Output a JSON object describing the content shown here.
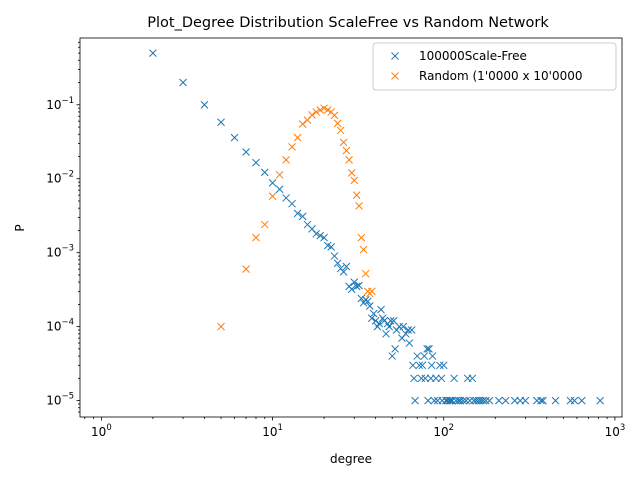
{
  "chart_data": {
    "type": "scatter",
    "title": "Plot_Degree Distribution ScaleFree vs Random Network",
    "xlabel": "degree",
    "ylabel": "P",
    "xscale": "log",
    "yscale": "log",
    "xlim": [
      0.75,
      1100
    ],
    "ylim": [
      6e-06,
      0.8
    ],
    "grid": false,
    "legend_position": "upper right",
    "x_ticks": [
      1,
      10,
      100,
      1000
    ],
    "x_tick_labels": [
      {
        "base": "10",
        "exp": "0"
      },
      {
        "base": "10",
        "exp": "1"
      },
      {
        "base": "10",
        "exp": "2"
      },
      {
        "base": "10",
        "exp": "3"
      }
    ],
    "y_ticks": [
      1e-05,
      0.0001,
      0.001,
      0.01,
      0.1
    ],
    "y_tick_labels": [
      {
        "base": "10",
        "exp": "−5"
      },
      {
        "base": "10",
        "exp": "−4"
      },
      {
        "base": "10",
        "exp": "−3"
      },
      {
        "base": "10",
        "exp": "−2"
      },
      {
        "base": "10",
        "exp": "−1"
      }
    ],
    "series": [
      {
        "name": "100000Scale-Free",
        "color": "#1f77b4",
        "marker": "x",
        "points": [
          [
            2,
            0.5
          ],
          [
            3,
            0.2
          ],
          [
            4,
            0.1
          ],
          [
            5,
            0.058
          ],
          [
            6,
            0.036
          ],
          [
            7,
            0.023
          ],
          [
            8,
            0.0165
          ],
          [
            9,
            0.0122
          ],
          [
            10,
            0.0088
          ],
          [
            11,
            0.0072
          ],
          [
            12,
            0.0055
          ],
          [
            13,
            0.0046
          ],
          [
            14,
            0.0034
          ],
          [
            15,
            0.0031
          ],
          [
            16,
            0.0024
          ],
          [
            17,
            0.0021
          ],
          [
            18,
            0.0018
          ],
          [
            19,
            0.0017
          ],
          [
            20,
            0.0016
          ],
          [
            21,
            0.00125
          ],
          [
            22,
            0.0012
          ],
          [
            23,
            0.0009
          ],
          [
            24,
            0.00072
          ],
          [
            25,
            0.00061
          ],
          [
            26,
            0.00055
          ],
          [
            27,
            0.00065
          ],
          [
            28,
            0.00035
          ],
          [
            29,
            0.00032
          ],
          [
            30,
            0.0004
          ],
          [
            31,
            0.00035
          ],
          [
            32,
            0.00036
          ],
          [
            33,
            0.00024
          ],
          [
            34,
            0.00021
          ],
          [
            35,
            0.00023
          ],
          [
            36,
            0.00022
          ],
          [
            37,
            0.00019
          ],
          [
            38,
            0.00013
          ],
          [
            39,
            0.00015
          ],
          [
            40,
            0.00012
          ],
          [
            41,
            0.0001
          ],
          [
            42,
            0.00011
          ],
          [
            43,
            0.00017
          ],
          [
            44,
            0.00013
          ],
          [
            45,
            0.00012
          ],
          [
            46,
            8e-05
          ],
          [
            47,
            0.00011
          ],
          [
            48,
            0.0001
          ],
          [
            49,
            0.00012
          ],
          [
            50,
            4e-05
          ],
          [
            51,
            0.00012
          ],
          [
            52,
            5e-05
          ],
          [
            53,
            9e-05
          ],
          [
            55,
            0.0001
          ],
          [
            57,
            7e-05
          ],
          [
            58,
            0.0001
          ],
          [
            60,
            8e-05
          ],
          [
            62,
            9e-05
          ],
          [
            63,
            6e-05
          ],
          [
            65,
            9e-05
          ],
          [
            66,
            3e-05
          ],
          [
            67,
            2e-05
          ],
          [
            68,
            1e-05
          ],
          [
            70,
            4e-05
          ],
          [
            72,
            3e-05
          ],
          [
            74,
            2e-05
          ],
          [
            75,
            3e-05
          ],
          [
            77,
            4e-05
          ],
          [
            78,
            2e-05
          ],
          [
            80,
            5e-05
          ],
          [
            81,
            1e-05
          ],
          [
            82,
            5e-05
          ],
          [
            84,
            2e-05
          ],
          [
            85,
            3e-05
          ],
          [
            86,
            4e-05
          ],
          [
            88,
            1e-05
          ],
          [
            90,
            2e-05
          ],
          [
            92,
            1e-05
          ],
          [
            95,
            3e-05
          ],
          [
            97,
            2e-05
          ],
          [
            98,
            1e-05
          ],
          [
            100,
            3e-05
          ],
          [
            103,
            1e-05
          ],
          [
            105,
            1e-05
          ],
          [
            108,
            1e-05
          ],
          [
            110,
            1e-05
          ],
          [
            112,
            1e-05
          ],
          [
            115,
            2e-05
          ],
          [
            118,
            1e-05
          ],
          [
            122,
            1e-05
          ],
          [
            125,
            1e-05
          ],
          [
            130,
            1e-05
          ],
          [
            135,
            1e-05
          ],
          [
            138,
            2e-05
          ],
          [
            142,
            1e-05
          ],
          [
            147,
            2e-05
          ],
          [
            150,
            1e-05
          ],
          [
            155,
            1e-05
          ],
          [
            160,
            1e-05
          ],
          [
            165,
            1e-05
          ],
          [
            170,
            1e-05
          ],
          [
            176,
            1e-05
          ],
          [
            185,
            1e-05
          ],
          [
            210,
            1e-05
          ],
          [
            230,
            1e-05
          ],
          [
            260,
            1e-05
          ],
          [
            280,
            1e-05
          ],
          [
            300,
            1e-05
          ],
          [
            350,
            1e-05
          ],
          [
            370,
            1e-05
          ],
          [
            380,
            1e-05
          ],
          [
            450,
            1e-05
          ],
          [
            550,
            1e-05
          ],
          [
            580,
            1e-05
          ],
          [
            640,
            1e-05
          ],
          [
            820,
            1e-05
          ]
        ]
      },
      {
        "name": "Random (1'0000 x 10'0000",
        "color": "#ff7f0e",
        "marker": "x",
        "points": [
          [
            5,
            0.0001
          ],
          [
            7,
            0.0006
          ],
          [
            8,
            0.0016
          ],
          [
            9,
            0.0024
          ],
          [
            10,
            0.0058
          ],
          [
            11,
            0.0113
          ],
          [
            12,
            0.018
          ],
          [
            13,
            0.027
          ],
          [
            14,
            0.036
          ],
          [
            15,
            0.055
          ],
          [
            16,
            0.062
          ],
          [
            17,
            0.073
          ],
          [
            18,
            0.08
          ],
          [
            19,
            0.085
          ],
          [
            20,
            0.09
          ],
          [
            21,
            0.085
          ],
          [
            22,
            0.08
          ],
          [
            23,
            0.072
          ],
          [
            24,
            0.056
          ],
          [
            25,
            0.045
          ],
          [
            26,
            0.031
          ],
          [
            27,
            0.024
          ],
          [
            28,
            0.018
          ],
          [
            29,
            0.012
          ],
          [
            30,
            0.0095
          ],
          [
            31,
            0.006
          ],
          [
            32,
            0.0043
          ],
          [
            33,
            0.0016
          ],
          [
            34,
            0.0011
          ],
          [
            35,
            0.00052
          ],
          [
            36,
            0.0003
          ],
          [
            37,
            0.00028
          ],
          [
            38,
            0.0003
          ]
        ]
      }
    ]
  }
}
